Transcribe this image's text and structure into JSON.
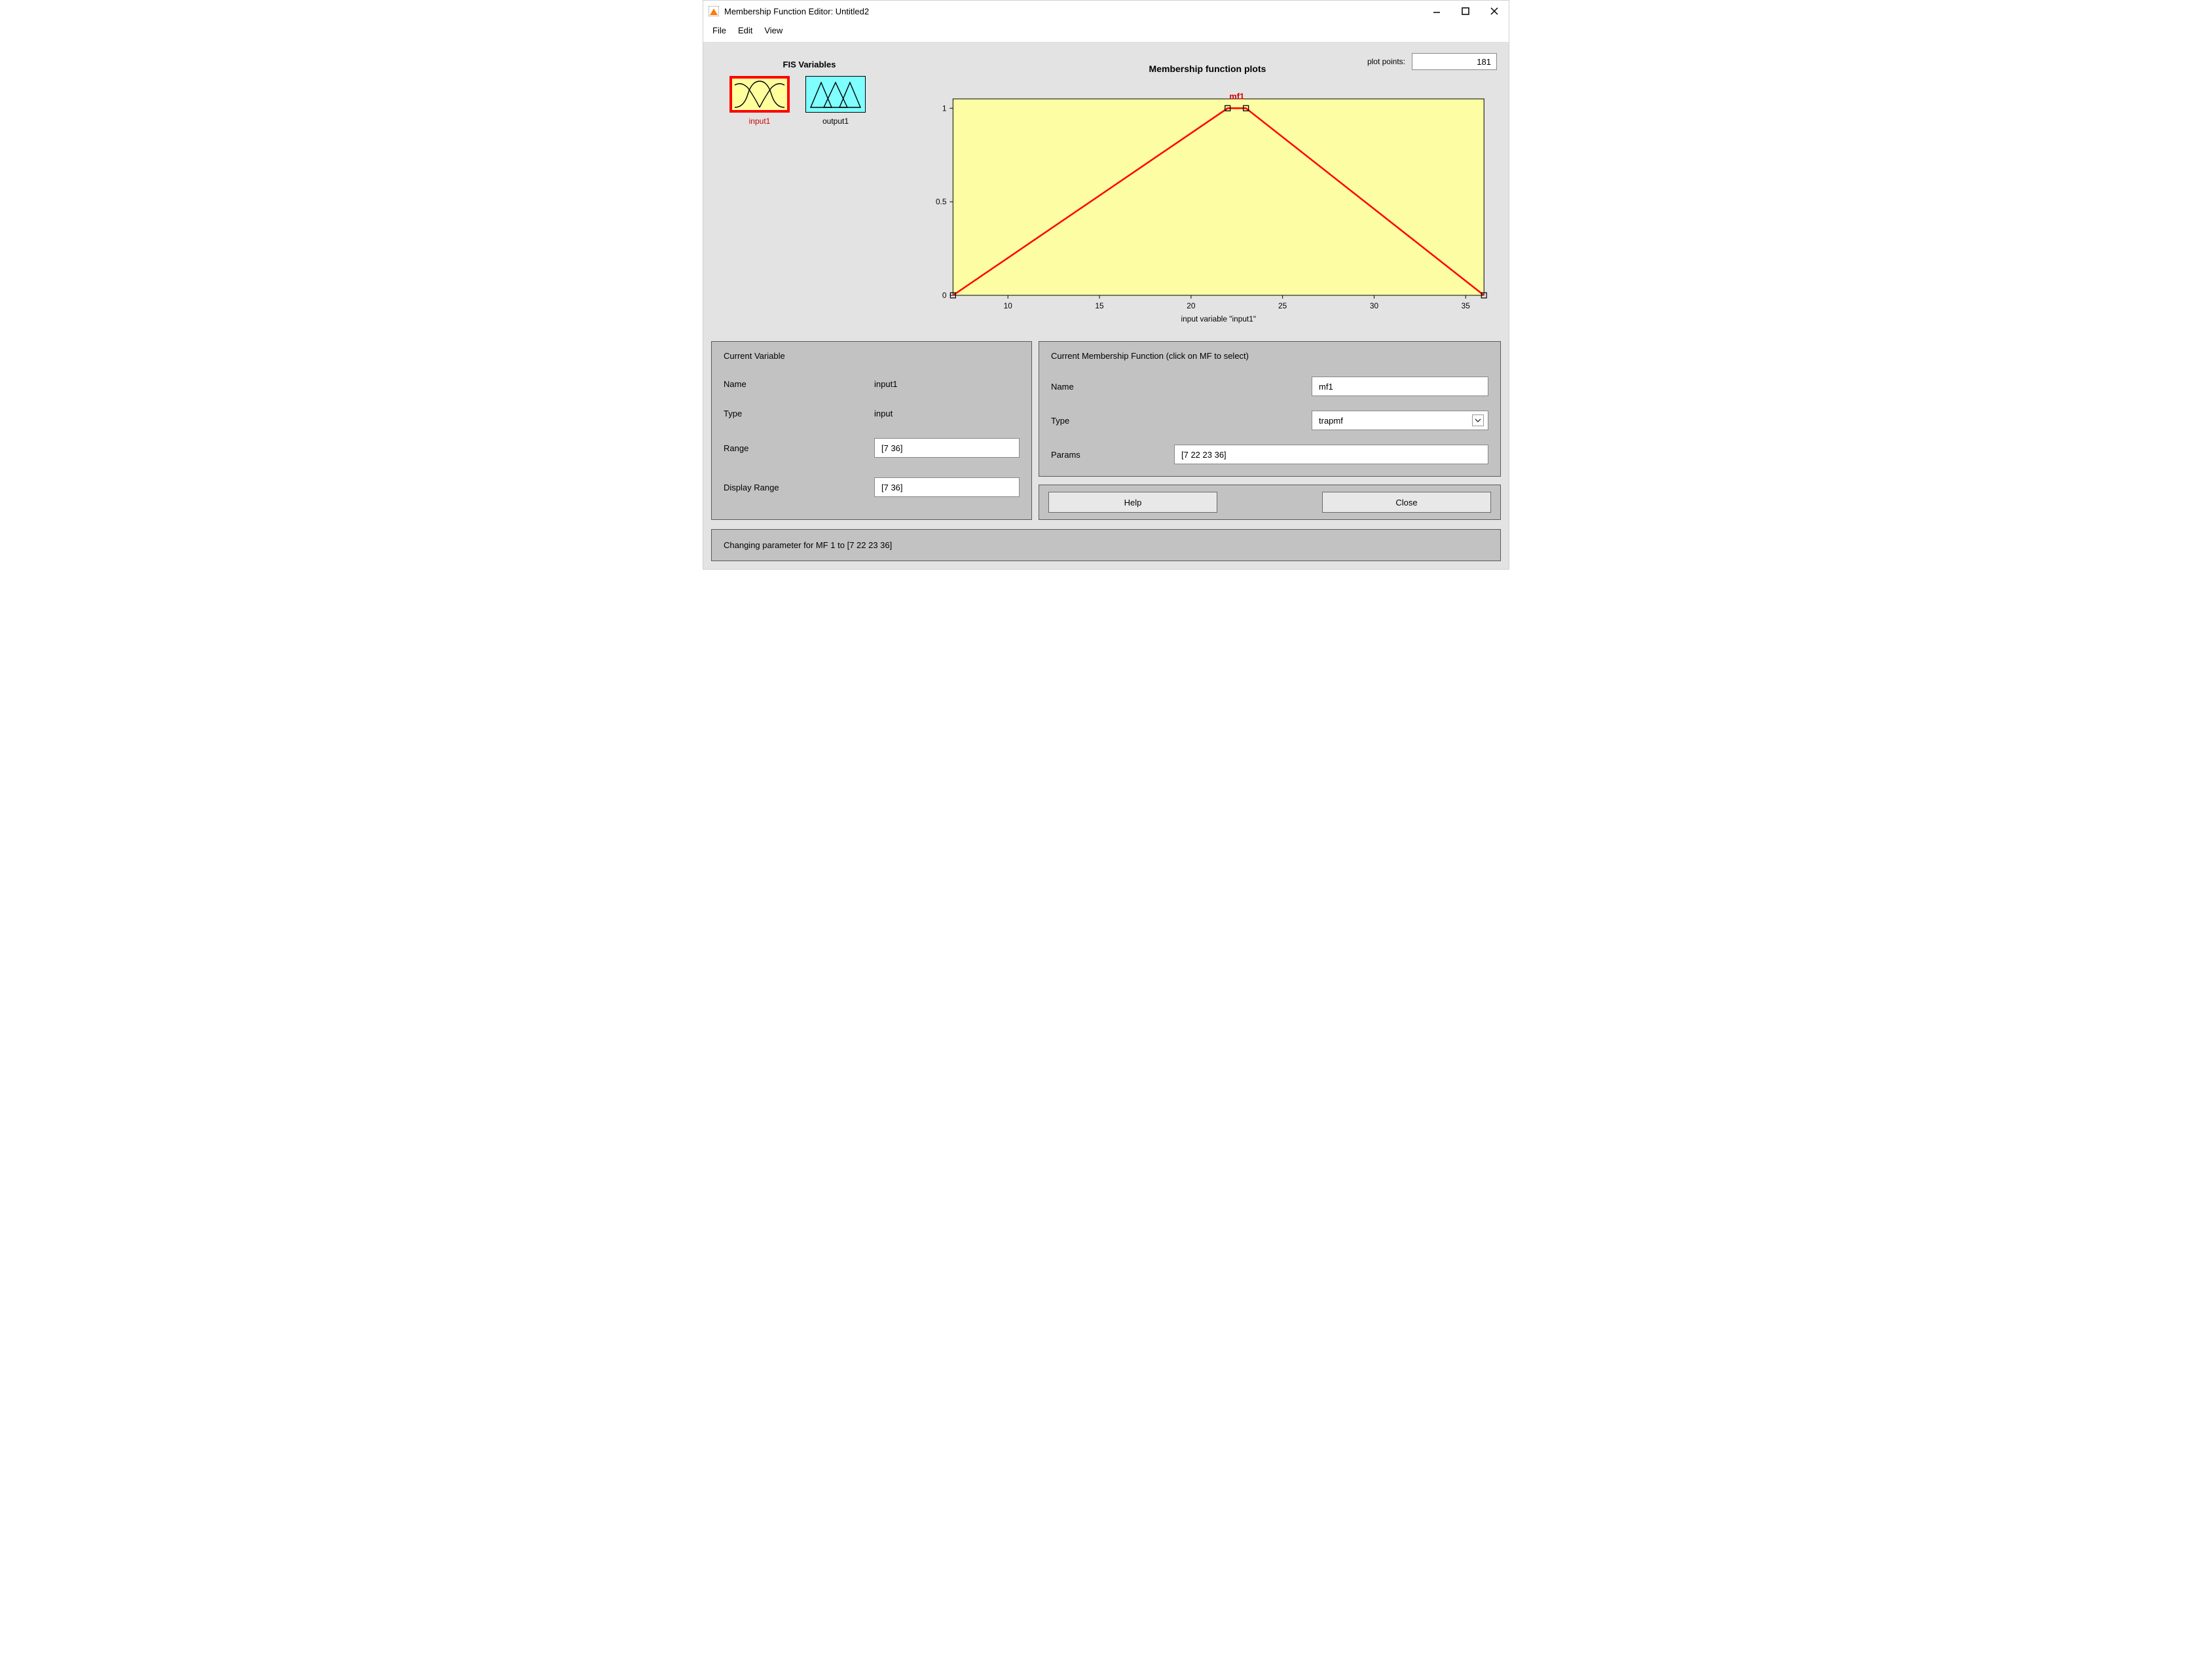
{
  "window": {
    "title": "Membership Function Editor: Untitled2"
  },
  "menu": {
    "file": "File",
    "edit": "Edit",
    "view": "View"
  },
  "fis": {
    "heading": "FIS Variables",
    "input": {
      "label": "input1",
      "selected": true,
      "bg": "#ffff9e",
      "stroke": "#000000"
    },
    "output": {
      "label": "output1",
      "selected": false,
      "bg": "#7fffff",
      "stroke": "#000000"
    }
  },
  "plot": {
    "points_label": "plot points:",
    "points_value": "181",
    "title": "Membership function plots",
    "xlabel": "input variable \"input1\"",
    "mf_label": "mf1",
    "mf_label_color": "#d00000",
    "series": {
      "type": "trapmf",
      "x": [
        7,
        22,
        23,
        36
      ],
      "y": [
        0,
        1,
        1,
        0
      ],
      "color": "#ff0000",
      "line_width": 2.5,
      "marker_x": [
        22,
        23
      ],
      "marker_y": [
        1,
        1
      ],
      "marker_style": "square",
      "marker_size": 8,
      "marker_stroke": "#000000",
      "marker_fill": "none"
    },
    "end_markers": {
      "x": [
        7,
        36
      ],
      "y": [
        0,
        0
      ],
      "stroke": "#000000"
    },
    "axes": {
      "xlim": [
        7,
        36
      ],
      "ylim": [
        0,
        1.05
      ],
      "xticks": [
        10,
        15,
        20,
        25,
        30,
        35
      ],
      "yticks": [
        0,
        0.5,
        1
      ],
      "plot_bg": "#fdfda4",
      "figure_bg": "#e3e3e3",
      "axis_color": "#000000",
      "tick_font_size": 12,
      "label_font_size": 12
    }
  },
  "current_var": {
    "heading": "Current Variable",
    "name_label": "Name",
    "name_value": "input1",
    "type_label": "Type",
    "type_value": "input",
    "range_label": "Range",
    "range_value": "[7 36]",
    "disp_range_label": "Display Range",
    "disp_range_value": "[7 36]"
  },
  "current_mf": {
    "heading": "Current Membership Function (click on MF to select)",
    "name_label": "Name",
    "name_value": "mf1",
    "type_label": "Type",
    "type_value": "trapmf",
    "params_label": "Params",
    "params_value": "[7 22 23 36]"
  },
  "buttons": {
    "help": "Help",
    "close": "Close"
  },
  "status": "Changing parameter for MF 1 to  [7 22 23 36]"
}
